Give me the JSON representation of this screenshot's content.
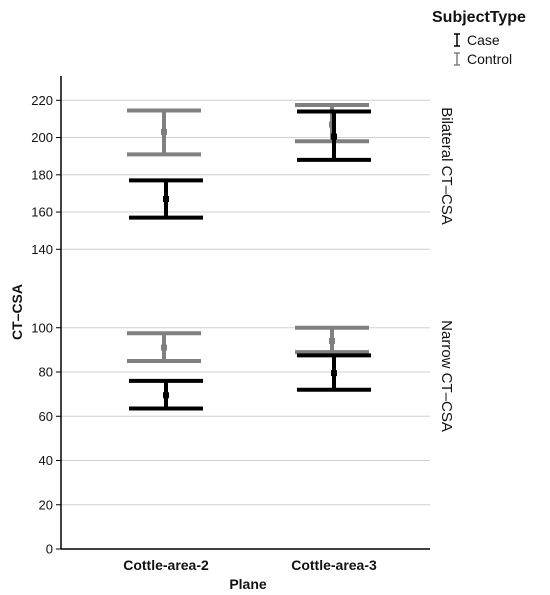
{
  "chart_data": {
    "type": "errorbar",
    "xlabel": "Plane",
    "ylabel": "CT–CSA",
    "categories": [
      "Cottle-area-2",
      "Cottle-area-3"
    ],
    "legend": {
      "title": "SubjectType",
      "placement": "top-right",
      "entries": [
        "Case",
        "Control"
      ]
    },
    "colors": {
      "Case": "#000000",
      "Control": "#808080"
    },
    "grid": true,
    "panels": [
      {
        "label": "Bilateral CT–CSA",
        "ylim": [
          140,
          220
        ],
        "yticks": [
          140,
          160,
          180,
          200,
          220
        ],
        "series": [
          {
            "name": "Case",
            "mean": [
              167,
              200.5
            ],
            "lower": [
              157,
              188
            ],
            "upper": [
              177,
              214
            ]
          },
          {
            "name": "Control",
            "mean": [
              203,
              207
            ],
            "lower": [
              191,
              198
            ],
            "upper": [
              214.5,
              217.5
            ]
          }
        ]
      },
      {
        "label": "Narrow CT–CSA",
        "ylim": [
          0,
          100
        ],
        "yticks": [
          0,
          20,
          40,
          60,
          80,
          100
        ],
        "series": [
          {
            "name": "Case",
            "mean": [
              69.5,
              79.5
            ],
            "lower": [
              63.5,
              72
            ],
            "upper": [
              76,
              87.5
            ]
          },
          {
            "name": "Control",
            "mean": [
              91,
              94
            ],
            "lower": [
              85,
              89
            ],
            "upper": [
              97.5,
              100
            ]
          }
        ]
      }
    ]
  }
}
